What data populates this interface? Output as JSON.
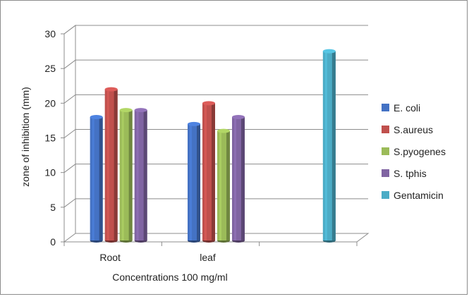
{
  "chart_data": {
    "type": "bar",
    "title": "",
    "xlabel": "Concentrations 100 mg/ml",
    "ylabel": "zone of inhibition  (mm)",
    "ylim": [
      0,
      30
    ],
    "yticks": [
      0,
      5,
      10,
      15,
      20,
      25,
      30
    ],
    "grid": true,
    "legend_position": "right",
    "categories": [
      "Root",
      "leaf",
      ""
    ],
    "series": [
      {
        "name": "E. coli",
        "color": "#4472c4",
        "values": [
          18,
          17,
          null
        ]
      },
      {
        "name": "S.aureus",
        "color": "#c0504d",
        "values": [
          22,
          20,
          null
        ]
      },
      {
        "name": "S.pyogenes",
        "color": "#9bbb59",
        "values": [
          19,
          16,
          null
        ]
      },
      {
        "name": "S. tphis",
        "color": "#8064a2",
        "values": [
          19,
          18,
          null
        ]
      },
      {
        "name": "Gentamicin",
        "color": "#4bacc6",
        "values": [
          null,
          null,
          27.5
        ]
      }
    ]
  }
}
